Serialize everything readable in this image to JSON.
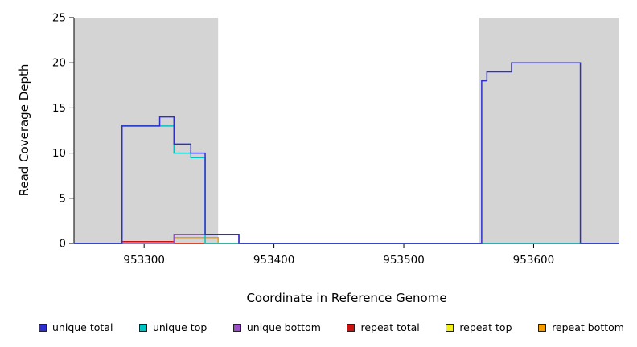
{
  "chart_data": {
    "type": "line",
    "subtype": "step-coverage",
    "title": "",
    "xlabel": "Coordinate in Reference Genome",
    "ylabel": "Read Coverage Depth",
    "xlim": [
      953246,
      953666
    ],
    "ylim": [
      0,
      25
    ],
    "xticks": [
      953300,
      953400,
      953500,
      953600
    ],
    "yticks": [
      0,
      5,
      10,
      15,
      20,
      25
    ],
    "grid": false,
    "legend_position": "bottom",
    "plot_background": "#ffffff",
    "shaded_region_color": "#d4d4d4",
    "shaded_regions": [
      {
        "from": 953246,
        "to": 953357
      },
      {
        "from": 953558,
        "to": 953666
      }
    ],
    "series": [
      {
        "name": "unique total",
        "color": "#2e2ecd",
        "steps": [
          [
            953246,
            0
          ],
          [
            953283,
            13
          ],
          [
            953312,
            14
          ],
          [
            953323,
            11
          ],
          [
            953336,
            10
          ],
          [
            953347,
            1
          ],
          [
            953373,
            0
          ],
          [
            953560,
            18
          ],
          [
            953564,
            19
          ],
          [
            953583,
            20
          ],
          [
            953636,
            0
          ]
        ]
      },
      {
        "name": "unique top",
        "color": "#00c3c3",
        "steps": [
          [
            953246,
            0
          ],
          [
            953283,
            13
          ],
          [
            953323,
            10
          ],
          [
            953336,
            9.5
          ],
          [
            953347,
            0
          ]
        ]
      },
      {
        "name": "unique bottom",
        "color": "#9b4fc9",
        "steps": [
          [
            953246,
            0
          ],
          [
            953323,
            1
          ],
          [
            953373,
            0
          ]
        ]
      },
      {
        "name": "repeat total",
        "color": "#cc1111",
        "steps": [
          [
            953246,
            0
          ],
          [
            953283,
            0.2
          ],
          [
            953323,
            0
          ]
        ]
      },
      {
        "name": "repeat top",
        "color": "#f2ef1d",
        "steps": [
          [
            953246,
            0
          ]
        ]
      },
      {
        "name": "repeat bottom",
        "color": "#f59b00",
        "steps": [
          [
            953246,
            0
          ],
          [
            953323,
            0.65
          ],
          [
            953357,
            0
          ]
        ]
      }
    ]
  }
}
